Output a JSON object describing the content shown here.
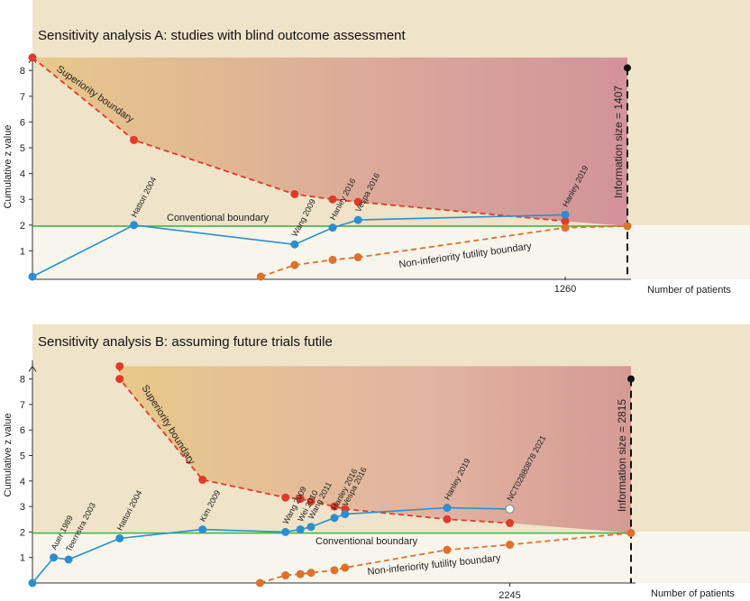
{
  "chart_data": [
    {
      "type": "line",
      "title": "Sensitivity analysis A: studies with blind outcome assessment",
      "ylabel": "Cumulative z value",
      "xlabel": "Number of patients",
      "x_ticks": [
        1260
      ],
      "y_ticks": [
        1,
        2,
        3,
        4,
        5,
        6,
        7,
        8
      ],
      "xlim": [
        0,
        1407
      ],
      "ylim": [
        0,
        8.5
      ],
      "information_size": {
        "label": "Information size = 1407",
        "x": 1407,
        "y_top": 8.1
      },
      "conventional_boundary": {
        "label": "Conventional boundary",
        "y": 1.96
      },
      "superiority_boundary": {
        "label": "Superiority boundary",
        "points": [
          [
            0,
            8.5
          ],
          [
            240,
            5.3
          ],
          [
            620,
            3.2
          ],
          [
            710,
            3.0
          ],
          [
            770,
            2.9
          ],
          [
            1260,
            2.15
          ]
        ]
      },
      "futility_boundary": {
        "label": "Non-inferiority futility boundary",
        "points": [
          [
            540,
            0.0
          ],
          [
            620,
            0.45
          ],
          [
            710,
            0.65
          ],
          [
            770,
            0.75
          ],
          [
            1260,
            1.9
          ],
          [
            1407,
            1.96
          ]
        ]
      },
      "z_curve": {
        "points": [
          [
            0,
            0.0
          ],
          [
            240,
            2.0
          ],
          [
            620,
            1.25
          ],
          [
            710,
            1.9
          ],
          [
            770,
            2.2
          ],
          [
            1260,
            2.4
          ]
        ],
        "labels": [
          "",
          "Hattori 2004",
          "Wang 2009",
          "Hanley 2016",
          "Vespa 2016",
          "Hanley 2019"
        ]
      }
    },
    {
      "type": "line",
      "title": "Sensitivity analysis B: assuming future trials futile",
      "ylabel": "Cumulative z value",
      "xlabel": "Number of patients",
      "x_ticks": [
        2245
      ],
      "y_ticks": [
        1,
        2,
        3,
        4,
        5,
        6,
        7,
        8
      ],
      "xlim": [
        0,
        2815
      ],
      "ylim": [
        0,
        8.5
      ],
      "information_size": {
        "label": "Information size = 2815",
        "x": 2815,
        "y_top": 8.0
      },
      "conventional_boundary": {
        "label": "Conventional boundary",
        "y": 1.96
      },
      "superiority_boundary": {
        "label": "Superiority boundary",
        "points": [
          [
            410,
            8.5
          ],
          [
            410,
            8.0
          ],
          [
            800,
            4.05
          ],
          [
            1190,
            3.35
          ],
          [
            1260,
            3.3
          ],
          [
            1310,
            3.2
          ],
          [
            1420,
            3.0
          ],
          [
            1470,
            2.9
          ],
          [
            1950,
            2.5
          ],
          [
            2245,
            2.35
          ]
        ]
      },
      "futility_boundary": {
        "label": "Non-inferiority futility boundary",
        "points": [
          [
            1070,
            0.0
          ],
          [
            1190,
            0.3
          ],
          [
            1260,
            0.35
          ],
          [
            1310,
            0.4
          ],
          [
            1420,
            0.5
          ],
          [
            1470,
            0.6
          ],
          [
            1950,
            1.3
          ],
          [
            2245,
            1.5
          ],
          [
            2815,
            1.96
          ]
        ]
      },
      "z_curve": {
        "points": [
          [
            0,
            0.0
          ],
          [
            100,
            1.0
          ],
          [
            170,
            0.92
          ],
          [
            410,
            1.75
          ],
          [
            800,
            2.1
          ],
          [
            1190,
            2.0
          ],
          [
            1260,
            2.1
          ],
          [
            1310,
            2.2
          ],
          [
            1420,
            2.55
          ],
          [
            1470,
            2.7
          ],
          [
            1950,
            2.95
          ],
          [
            2245,
            2.9
          ]
        ],
        "labels": [
          "",
          "Auer 1989",
          "Teernstra 2003",
          "Hattori 2004",
          "Kim 2009",
          "Wang 2009",
          "Wei 2010",
          "Wang 2011",
          "Hanley 2016",
          "Vespa 2016",
          "Hanley 2019",
          "NCT02880878 2021"
        ]
      }
    }
  ]
}
